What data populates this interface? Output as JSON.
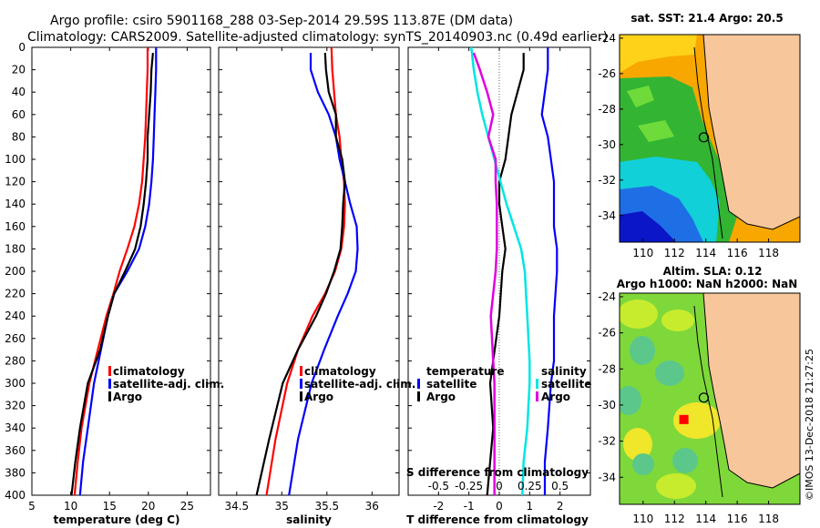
{
  "header": {
    "title_line1": "Argo profile: csiro 5901168_288 03-Sep-2014 29.59S 113.87E (DM data)",
    "title_line2": "Climatology: CARS2009. Satellite-adjusted climatology: synTS_20140903.nc (0.49d earlier)"
  },
  "colors": {
    "climatology": "#ff0000",
    "satellite": "#0000ff",
    "argo": "#000000",
    "t_diff": "#00e5e5",
    "s_diff": "#e000e0",
    "land": "#f7c79b"
  },
  "chart_data": [
    {
      "type": "line",
      "id": "temperature",
      "xlabel": "temperature (deg C)",
      "ylabel": "",
      "xlim": [
        5,
        28
      ],
      "xticks": [
        "5",
        "10",
        "15",
        "20",
        "25"
      ],
      "xtick_values": [
        5,
        10,
        15,
        20,
        25
      ],
      "ylim": [
        0,
        400
      ],
      "yticks": [
        "0",
        "20",
        "40",
        "60",
        "80",
        "100",
        "120",
        "140",
        "160",
        "180",
        "200",
        "220",
        "240",
        "260",
        "280",
        "300",
        "320",
        "340",
        "360",
        "380",
        "400"
      ],
      "ytick_values": [
        0,
        20,
        40,
        60,
        80,
        100,
        120,
        140,
        160,
        180,
        200,
        220,
        240,
        260,
        280,
        300,
        320,
        340,
        360,
        380,
        400
      ],
      "legend": [
        "climatology",
        "satellite-adj. clim.",
        "Argo"
      ],
      "series": [
        {
          "name": "climatology",
          "color": "#ff0000",
          "x": [
            19.9,
            19.9,
            19.8,
            19.7,
            19.6,
            19.4,
            19.2,
            18.8,
            18.2,
            17.3,
            16.3,
            15.5,
            14.6,
            13.5,
            12.4,
            11.4,
            10.9,
            10.5
          ],
          "y": [
            0,
            20,
            40,
            60,
            80,
            100,
            120,
            140,
            160,
            180,
            200,
            220,
            240,
            270,
            300,
            340,
            370,
            400
          ]
        },
        {
          "name": "satellite-adj. clim.",
          "color": "#0000ff",
          "x": [
            21.0,
            21.0,
            20.9,
            20.8,
            20.7,
            20.6,
            20.4,
            20.1,
            19.6,
            18.8,
            17.3,
            15.6,
            14.8,
            13.9,
            13.0,
            12.2,
            11.6,
            11.2
          ],
          "y": [
            0,
            20,
            40,
            60,
            80,
            100,
            120,
            140,
            160,
            180,
            200,
            220,
            240,
            270,
            300,
            340,
            370,
            400
          ]
        },
        {
          "name": "Argo",
          "color": "#000000",
          "x": [
            20.6,
            20.4,
            20.3,
            20.1,
            19.9,
            19.9,
            19.7,
            19.4,
            19.0,
            18.3,
            17.0,
            15.6,
            14.8,
            13.8,
            12.2,
            11.2,
            10.6,
            10.1
          ],
          "y": [
            5,
            20,
            40,
            60,
            80,
            100,
            120,
            140,
            160,
            180,
            200,
            220,
            240,
            270,
            300,
            340,
            370,
            400
          ]
        }
      ]
    },
    {
      "type": "line",
      "id": "salinity",
      "xlabel": "salinity",
      "ylabel": "",
      "xlim": [
        34.3,
        36.3
      ],
      "xticks": [
        "34.5",
        "35",
        "35.5",
        "36"
      ],
      "xtick_values": [
        34.5,
        35,
        35.5,
        36
      ],
      "ylim": [
        0,
        400
      ],
      "legend": [
        "climatology",
        "satellite-adj. clim.",
        "Argo"
      ],
      "series": [
        {
          "name": "climatology",
          "color": "#ff0000",
          "x": [
            35.55,
            35.56,
            35.58,
            35.6,
            35.64,
            35.66,
            35.69,
            35.7,
            35.69,
            35.66,
            35.59,
            35.48,
            35.34,
            35.18,
            35.06,
            34.93,
            34.83
          ],
          "y": [
            0,
            20,
            40,
            60,
            80,
            100,
            120,
            140,
            160,
            180,
            200,
            220,
            240,
            270,
            300,
            350,
            400
          ]
        },
        {
          "name": "satellite-adj. clim.",
          "color": "#0000ff",
          "x": [
            35.32,
            35.32,
            35.4,
            35.52,
            35.6,
            35.64,
            35.7,
            35.76,
            35.83,
            35.84,
            35.82,
            35.73,
            35.62,
            35.47,
            35.33,
            35.18,
            35.08
          ],
          "y": [
            5,
            20,
            40,
            60,
            80,
            100,
            120,
            140,
            160,
            180,
            200,
            220,
            240,
            270,
            300,
            350,
            400
          ]
        },
        {
          "name": "Argo",
          "color": "#000000",
          "x": [
            35.48,
            35.49,
            35.52,
            35.6,
            35.6,
            35.67,
            35.7,
            35.68,
            35.67,
            35.65,
            35.58,
            35.49,
            35.38,
            35.18,
            35.01,
            34.86,
            34.72
          ],
          "y": [
            5,
            20,
            40,
            60,
            80,
            100,
            120,
            140,
            160,
            180,
            200,
            220,
            240,
            270,
            300,
            350,
            400
          ]
        }
      ]
    },
    {
      "type": "line",
      "id": "difference",
      "xlabel": "T difference from climatology",
      "ylabel": "",
      "xlim": [
        -3,
        3
      ],
      "xticks": [
        "-2",
        "-1",
        "0",
        "1",
        "2"
      ],
      "xtick_values": [
        -2,
        -1,
        0,
        1,
        2
      ],
      "top_label": "S difference from climatology",
      "top_ticks": [
        "-0.5",
        "-0.25",
        "0",
        "0.25",
        "0.5"
      ],
      "top_tick_values": [
        -0.5,
        -0.25,
        0,
        0.25,
        0.5
      ],
      "ylim": [
        0,
        400
      ],
      "legend_left_title": "temperature",
      "legend_right_title": "salinity",
      "legend": [
        "satellite",
        "Argo",
        "satellite",
        "Argo"
      ],
      "series": [
        {
          "name": "T satellite",
          "color": "#0000ff",
          "x": [
            1.6,
            1.6,
            1.5,
            1.4,
            1.6,
            1.7,
            1.8,
            1.8,
            1.8,
            1.9,
            1.9,
            1.8,
            1.8,
            1.7,
            1.6,
            1.5,
            1.5
          ],
          "y": [
            0,
            20,
            40,
            60,
            80,
            100,
            120,
            140,
            160,
            180,
            200,
            240,
            280,
            300,
            340,
            370,
            400
          ]
        },
        {
          "name": "T Argo",
          "color": "#000000",
          "x": [
            0.8,
            0.8,
            0.6,
            0.4,
            0.3,
            0.2,
            0.0,
            0.0,
            0.1,
            0.2,
            0.1,
            0.0,
            -0.2,
            -0.3,
            -0.2,
            -0.3,
            -0.4
          ],
          "y": [
            5,
            20,
            40,
            60,
            80,
            100,
            120,
            140,
            160,
            180,
            200,
            240,
            280,
            300,
            340,
            370,
            400
          ]
        },
        {
          "name": "S satellite",
          "color": "#00e5e5",
          "x": [
            -0.23,
            -0.21,
            -0.18,
            -0.14,
            -0.09,
            -0.04,
            0.01,
            0.06,
            0.12,
            0.18,
            0.21,
            0.23,
            0.25,
            0.25,
            0.23,
            0.2,
            0.19
          ],
          "y": [
            0,
            20,
            40,
            60,
            80,
            100,
            120,
            140,
            160,
            180,
            200,
            240,
            280,
            300,
            340,
            370,
            400
          ]
        },
        {
          "name": "S Argo",
          "color": "#e000e0",
          "x": [
            -0.21,
            -0.16,
            -0.1,
            -0.05,
            -0.09,
            -0.03,
            -0.03,
            -0.02,
            -0.02,
            -0.02,
            -0.03,
            -0.07,
            -0.05,
            -0.04,
            -0.04,
            -0.04,
            -0.04
          ],
          "y": [
            5,
            20,
            40,
            60,
            80,
            100,
            120,
            140,
            160,
            180,
            200,
            240,
            280,
            300,
            340,
            370,
            400
          ]
        }
      ]
    },
    {
      "type": "heatmap",
      "id": "sst_map",
      "title": "sat. SST: 21.4 Argo: 20.5",
      "xlim": [
        108.5,
        120
      ],
      "ylim": [
        -35.5,
        -23.8
      ],
      "xticks": [
        "110",
        "112",
        "114",
        "116",
        "118"
      ],
      "xtick_values": [
        110,
        112,
        114,
        116,
        118
      ],
      "yticks": [
        "-24",
        "-26",
        "-28",
        "-30",
        "-32",
        "-34"
      ],
      "ytick_values": [
        -24,
        -26,
        -28,
        -30,
        -32,
        -34
      ],
      "argo_position": [
        113.87,
        -29.59
      ]
    },
    {
      "type": "heatmap",
      "id": "sla_map",
      "title_line1": "Altim. SLA: 0.12",
      "title_line2": "Argo h1000: NaN h2000: NaN",
      "xlim": [
        108.5,
        120
      ],
      "ylim": [
        -35.5,
        -23.8
      ],
      "xticks": [
        "110",
        "112",
        "114",
        "116",
        "118"
      ],
      "xtick_values": [
        110,
        112,
        114,
        116,
        118
      ],
      "yticks": [
        "-24",
        "-26",
        "-28",
        "-30",
        "-32",
        "-34"
      ],
      "ytick_values": [
        -24,
        -26,
        -28,
        -30,
        -32,
        -34
      ],
      "argo_position": [
        113.87,
        -29.59
      ],
      "marker_position": [
        112.6,
        -30.8
      ]
    }
  ],
  "watermark": "©IMOS 13-Dec-2018 21:27:25"
}
